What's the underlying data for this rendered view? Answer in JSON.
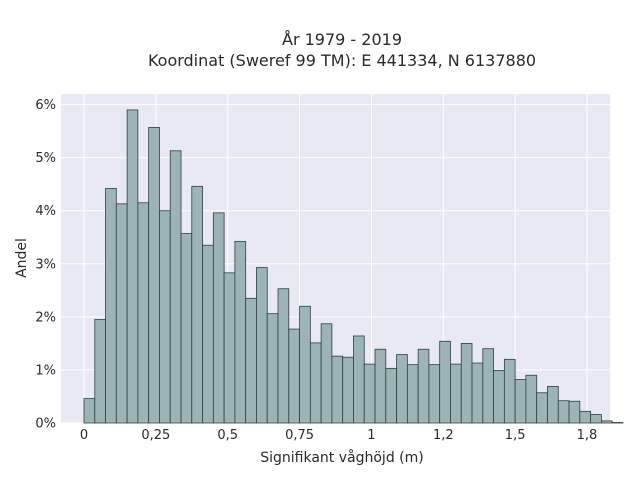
{
  "chart_data": {
    "type": "bar",
    "title_line1": "År 1979 - 2019",
    "title_line2": "Koordinat (Sweref 99 TM): E 441334, N 6137880",
    "xlabel": "Signifikant våghöjd (m)",
    "ylabel": "Andel",
    "xlim": [
      -0.08,
      1.83
    ],
    "ylim": [
      0,
      6.2
    ],
    "x_ticks": [
      0,
      0.25,
      0.5,
      0.75,
      1,
      1.25,
      1.5,
      1.75
    ],
    "x_tick_labels": [
      "0",
      "0,25",
      "0,5",
      "0,75",
      "1",
      "1,2",
      "1,5",
      "1,8"
    ],
    "y_ticks": [
      0,
      1,
      2,
      3,
      4,
      5,
      6
    ],
    "y_tick_labels": [
      "0%",
      "1%",
      "2%",
      "3%",
      "4%",
      "5%",
      "6%"
    ],
    "bin_width": 0.0375,
    "bin_start": 0,
    "values": [
      0.46,
      1.95,
      4.42,
      4.13,
      5.9,
      4.15,
      5.57,
      4.0,
      5.13,
      3.57,
      4.46,
      3.35,
      3.96,
      2.83,
      3.42,
      2.35,
      2.93,
      2.06,
      2.53,
      1.77,
      2.2,
      1.51,
      1.87,
      1.26,
      1.24,
      1.64,
      1.11,
      1.39,
      1.03,
      1.29,
      1.1,
      1.39,
      1.1,
      1.54,
      1.11,
      1.5,
      1.13,
      1.4,
      0.99,
      1.2,
      0.82,
      0.9,
      0.57,
      0.69,
      0.42,
      0.41,
      0.22,
      0.16,
      0.04,
      0.01
    ],
    "grid": true,
    "colors": {
      "bar_fill": "#9db4b4",
      "bar_stroke": "#2f3f3f",
      "plot_bg": "#e8e9f2",
      "grid": "#ffffff"
    }
  }
}
